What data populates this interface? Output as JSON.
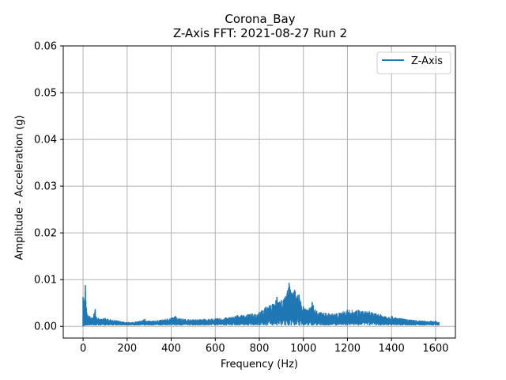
{
  "chart_data": {
    "type": "line",
    "title": "Corona_Bay",
    "subtitle": "Z-Axis FFT: 2021-08-27 Run 2",
    "xlabel": "Frequency (Hz)",
    "ylabel": "Amplitude - Acceleration (g)",
    "xlim": [
      -90,
      1690
    ],
    "ylim": [
      -0.0025,
      0.06
    ],
    "xticks": [
      0,
      200,
      400,
      600,
      800,
      1000,
      1200,
      1400,
      1600
    ],
    "yticks": [
      0.0,
      0.01,
      0.02,
      0.03,
      0.04,
      0.05,
      0.06
    ],
    "xtick_labels": [
      "0",
      "200",
      "400",
      "600",
      "800",
      "1000",
      "1200",
      "1400",
      "1600"
    ],
    "ytick_labels": [
      "0.00",
      "0.01",
      "0.02",
      "0.03",
      "0.04",
      "0.05",
      "0.06"
    ],
    "grid": true,
    "legend_position": "top-right",
    "series": [
      {
        "name": "Z-Axis",
        "color": "#1f77b4",
        "envelope": {
          "x": [
            0,
            5,
            10,
            15,
            20,
            30,
            40,
            50,
            55,
            60,
            70,
            80,
            100,
            150,
            200,
            250,
            280,
            300,
            350,
            400,
            420,
            440,
            500,
            550,
            600,
            650,
            700,
            750,
            800,
            830,
            860,
            880,
            900,
            920,
            935,
            945,
            960,
            980,
            1000,
            1020,
            1040,
            1060,
            1100,
            1150,
            1200,
            1250,
            1300,
            1350,
            1400,
            1450,
            1500,
            1550,
            1600,
            1615
          ],
          "max": [
            0.0063,
            0.0055,
            0.0088,
            0.004,
            0.0025,
            0.0022,
            0.0018,
            0.0027,
            0.0037,
            0.002,
            0.0018,
            0.0016,
            0.0018,
            0.0013,
            0.0009,
            0.0011,
            0.0016,
            0.0012,
            0.0014,
            0.0019,
            0.0022,
            0.0017,
            0.0015,
            0.0016,
            0.0017,
            0.0019,
            0.0024,
            0.0026,
            0.0031,
            0.0042,
            0.0048,
            0.0063,
            0.0056,
            0.0065,
            0.0093,
            0.0072,
            0.0078,
            0.0068,
            0.0043,
            0.0035,
            0.0052,
            0.0033,
            0.0029,
            0.0028,
            0.0036,
            0.0035,
            0.0032,
            0.0026,
            0.0022,
            0.0017,
            0.0014,
            0.0012,
            0.0012,
            0.0009
          ],
          "min": [
            0.0,
            0.0001,
            0.0002,
            0.0002,
            0.0002,
            0.0002,
            0.0002,
            0.0002,
            0.0002,
            0.0002,
            0.0002,
            0.0002,
            0.0002,
            0.0002,
            0.0002,
            0.0002,
            0.0002,
            0.0002,
            0.0002,
            0.0002,
            0.0002,
            0.0002,
            0.0002,
            0.0002,
            0.0002,
            0.0002,
            0.0002,
            0.0002,
            0.0002,
            0.0002,
            0.0002,
            0.0002,
            0.0002,
            0.0002,
            0.0002,
            0.0002,
            0.0002,
            0.0002,
            0.0002,
            0.0002,
            0.0002,
            0.0002,
            0.0002,
            0.0002,
            0.0002,
            0.0002,
            0.0002,
            0.0002,
            0.0002,
            0.0002,
            0.0002,
            0.0002,
            0.0002,
            0.0002
          ]
        }
      }
    ]
  }
}
